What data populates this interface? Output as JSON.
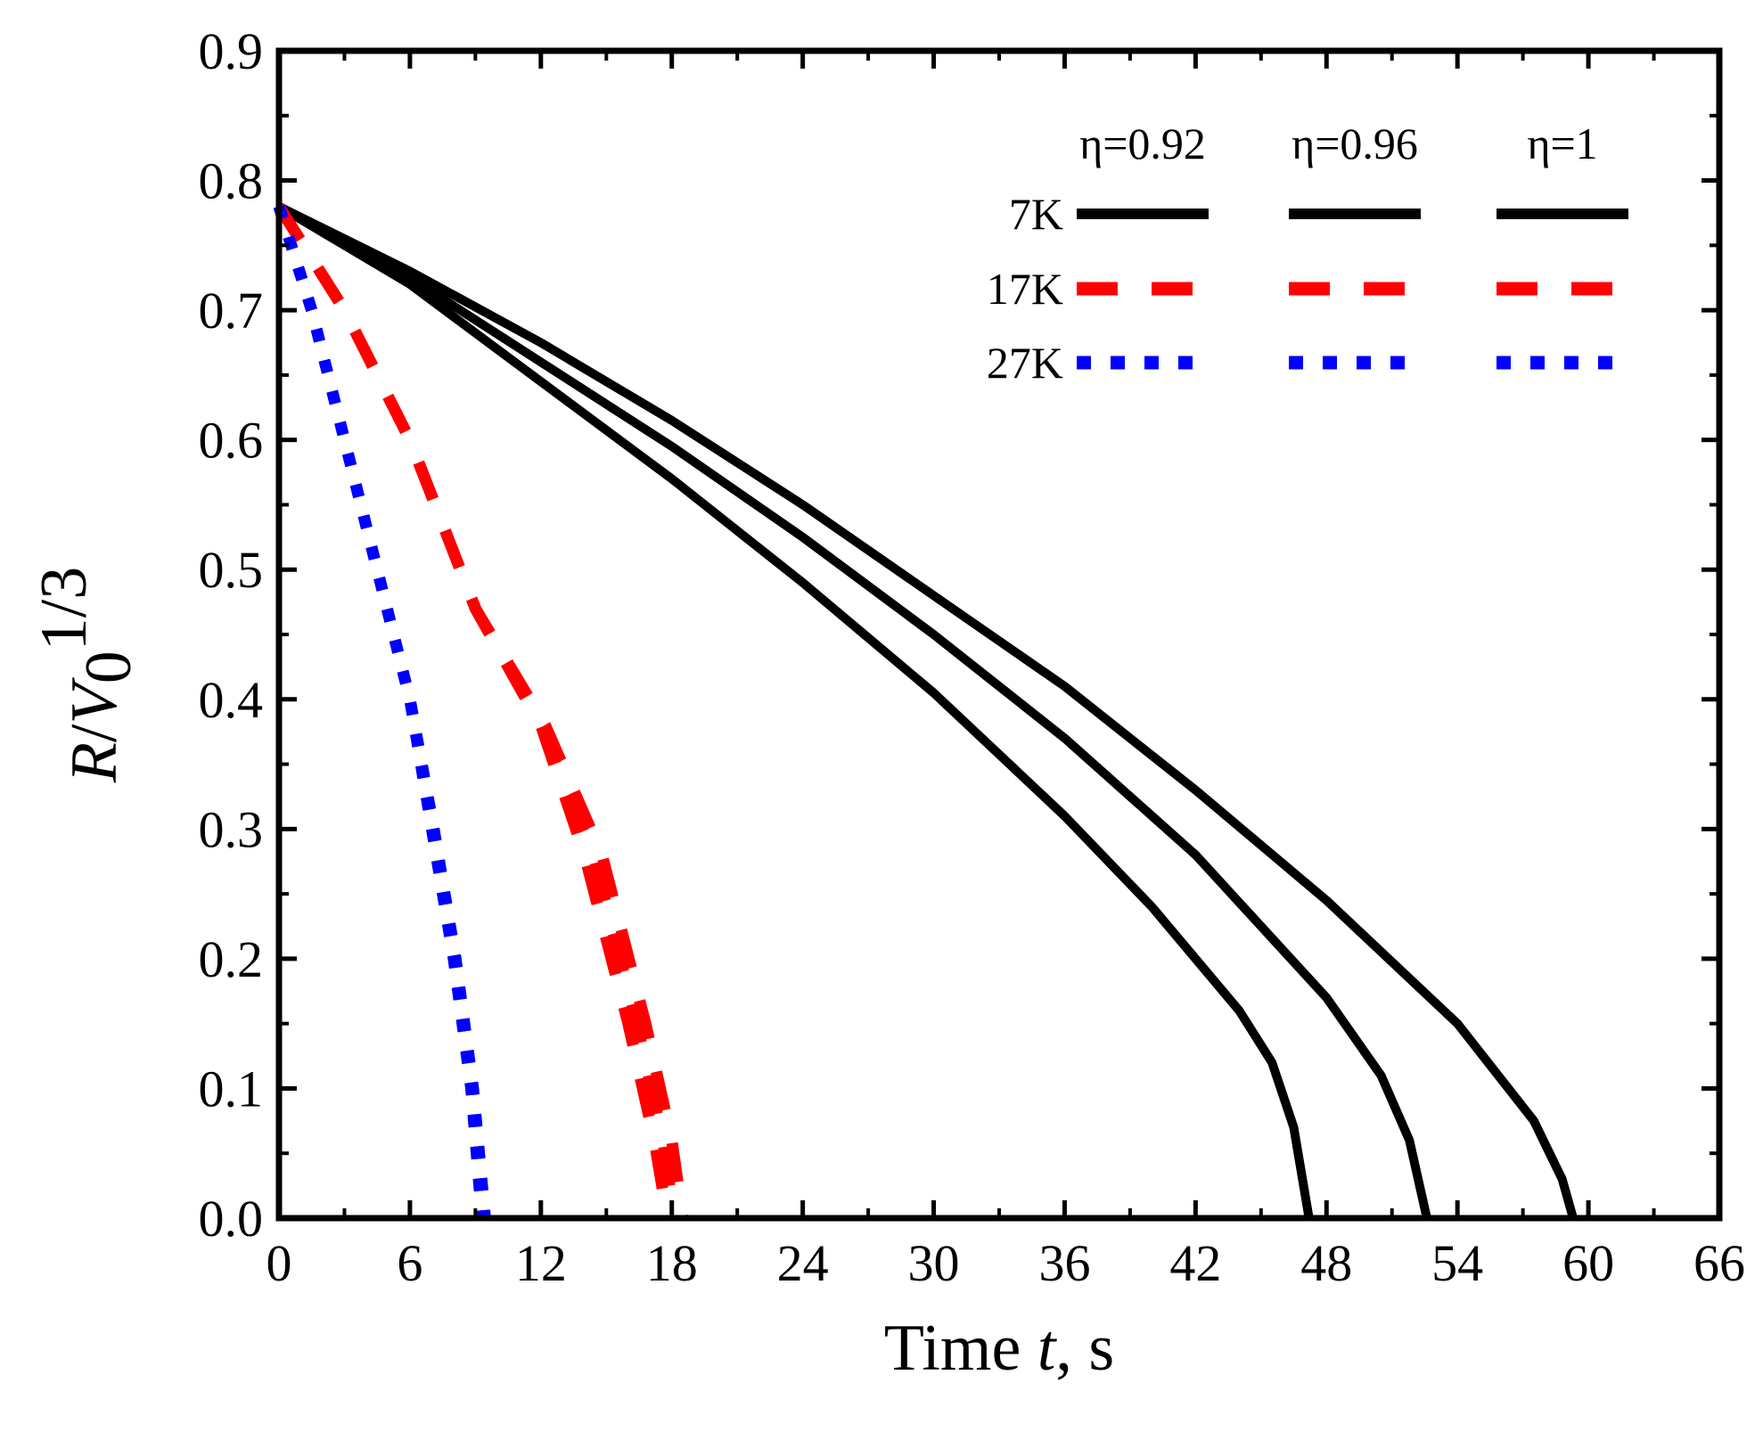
{
  "chart_data": {
    "type": "line",
    "title": "",
    "xlabel": "Time t, s",
    "xlabel_parts": [
      "Time ",
      "t",
      ", s"
    ],
    "ylabel_parts": [
      "R",
      "/",
      "V",
      "0",
      "1/3"
    ],
    "xlim": [
      0,
      66
    ],
    "ylim": [
      0,
      0.9
    ],
    "xticks": [
      0,
      6,
      12,
      18,
      24,
      30,
      36,
      42,
      48,
      54,
      60,
      66
    ],
    "xtick_labels": [
      "0",
      "6",
      "12",
      "18",
      "24",
      "30",
      "36",
      "42",
      "48",
      "54",
      "60",
      "66"
    ],
    "yticks": [
      0,
      0.1,
      0.2,
      0.3,
      0.4,
      0.5,
      0.6,
      0.7,
      0.8,
      0.9
    ],
    "ytick_labels": [
      "0.0",
      "0.1",
      "0.2",
      "0.3",
      "0.4",
      "0.5",
      "0.6",
      "0.7",
      "0.8",
      "0.9"
    ],
    "grid": false,
    "legend": {
      "placement": "top-right",
      "column_headers": [
        "η=0.92",
        "η=0.96",
        "η=1"
      ],
      "row_labels": [
        "7K",
        "17K",
        "27K"
      ]
    },
    "colors": {
      "7K": "#000000",
      "17K": "#ff0000",
      "27K": "#0000ff"
    },
    "series": [
      {
        "name": "7K, η=0.92",
        "temperature": "7K",
        "eta": "0.92",
        "style": "solid",
        "x": [
          0,
          6,
          12,
          18,
          24,
          30,
          36,
          40,
          44,
          45.5,
          46.5,
          47.2
        ],
        "y": [
          0.78,
          0.72,
          0.645,
          0.57,
          0.49,
          0.405,
          0.31,
          0.24,
          0.16,
          0.12,
          0.07,
          0.0
        ]
      },
      {
        "name": "7K, η=0.96",
        "temperature": "7K",
        "eta": "0.96",
        "style": "solid",
        "x": [
          0,
          6,
          12,
          18,
          24,
          30,
          36,
          42,
          48,
          50.5,
          51.8,
          52.6
        ],
        "y": [
          0.78,
          0.725,
          0.66,
          0.595,
          0.525,
          0.45,
          0.37,
          0.28,
          0.17,
          0.11,
          0.06,
          0.0
        ]
      },
      {
        "name": "7K, η=1",
        "temperature": "7K",
        "eta": "1",
        "style": "solid",
        "x": [
          0,
          6,
          12,
          18,
          24,
          30,
          36,
          42,
          48,
          54,
          57.5,
          58.8,
          59.3
        ],
        "y": [
          0.78,
          0.73,
          0.675,
          0.615,
          0.55,
          0.48,
          0.41,
          0.33,
          0.245,
          0.15,
          0.075,
          0.03,
          0.0
        ]
      },
      {
        "name": "17K, η=0.92",
        "temperature": "17K",
        "eta": "0.92",
        "style": "dashed",
        "x": [
          0,
          3,
          6,
          9,
          12,
          14,
          16,
          17.2,
          17.8
        ],
        "y": [
          0.78,
          0.7,
          0.6,
          0.47,
          0.38,
          0.28,
          0.15,
          0.06,
          0.0
        ]
      },
      {
        "name": "17K, η=0.96",
        "temperature": "17K",
        "eta": "0.96",
        "style": "dashed",
        "x": [
          0,
          3,
          6,
          9,
          12,
          14.4,
          16.4,
          17.6,
          18.1
        ],
        "y": [
          0.78,
          0.7,
          0.6,
          0.47,
          0.38,
          0.28,
          0.15,
          0.06,
          0.0
        ]
      },
      {
        "name": "17K, η=1",
        "temperature": "17K",
        "eta": "1",
        "style": "dashed",
        "x": [
          0,
          3,
          6,
          9,
          12.2,
          14.8,
          16.8,
          18.0,
          18.5
        ],
        "y": [
          0.78,
          0.7,
          0.6,
          0.47,
          0.38,
          0.28,
          0.15,
          0.06,
          0.0
        ]
      },
      {
        "name": "27K, η=0.92",
        "temperature": "27K",
        "eta": "0.92",
        "style": "dotted",
        "x": [
          0,
          1.5,
          3,
          4.5,
          6,
          7,
          8,
          8.8,
          9.3
        ],
        "y": [
          0.78,
          0.7,
          0.6,
          0.5,
          0.4,
          0.3,
          0.2,
          0.1,
          0.0
        ]
      },
      {
        "name": "27K, η=0.96",
        "temperature": "27K",
        "eta": "0.96",
        "style": "dotted",
        "x": [
          0,
          1.5,
          3,
          4.5,
          6,
          7.05,
          8.05,
          8.85,
          9.38
        ],
        "y": [
          0.78,
          0.7,
          0.6,
          0.5,
          0.4,
          0.3,
          0.2,
          0.1,
          0.0
        ]
      },
      {
        "name": "27K, η=1",
        "temperature": "27K",
        "eta": "1",
        "style": "dotted",
        "x": [
          0,
          1.5,
          3,
          4.5,
          6,
          7.1,
          8.1,
          8.9,
          9.45
        ],
        "y": [
          0.78,
          0.7,
          0.6,
          0.5,
          0.4,
          0.3,
          0.2,
          0.1,
          0.0
        ]
      }
    ]
  }
}
